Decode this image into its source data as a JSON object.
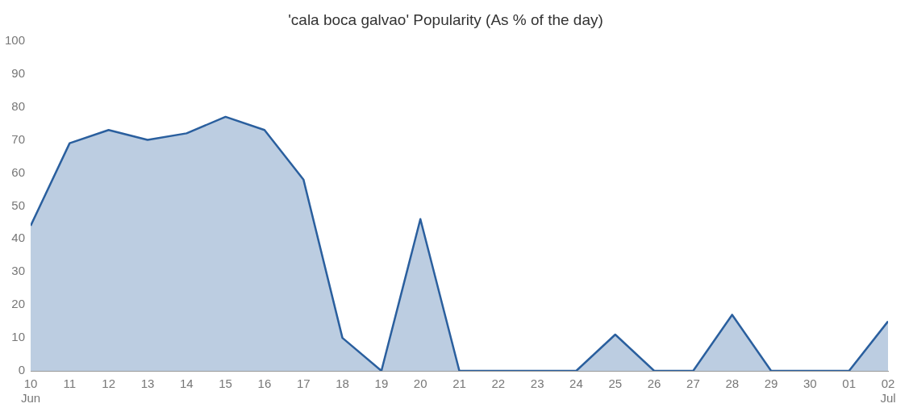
{
  "chart_data": {
    "type": "area",
    "title": "'cala boca galvao' Popularity (As % of the day)",
    "x": [
      "--06-10",
      "--06-11",
      "--06-12",
      "--06-13",
      "--06-14",
      "--06-15",
      "--06-16",
      "--06-17",
      "--06-18",
      "--06-19",
      "--06-20",
      "--06-21",
      "--06-22",
      "--06-23",
      "--06-24",
      "--06-25",
      "--06-26",
      "--06-27",
      "--06-28",
      "--06-29",
      "--06-30",
      "--07-01",
      "--07-02"
    ],
    "series": [
      {
        "color": "#2a5f9e",
        "values": [
          44,
          69,
          73,
          70,
          72,
          77,
          73,
          58,
          10,
          0,
          46,
          0,
          0,
          0,
          0,
          11,
          0,
          0,
          17,
          0,
          0,
          0,
          15
        ]
      }
    ],
    "xlim": [
      "--06-10",
      "--07-02"
    ],
    "xticks": [
      {
        "value": "--06-10",
        "label": "10\nJun"
      },
      {
        "value": "--06-11",
        "label": "11"
      },
      {
        "value": "--06-12",
        "label": "12"
      },
      {
        "value": "--06-13",
        "label": "13"
      },
      {
        "value": "--06-14",
        "label": "14"
      },
      {
        "value": "--06-15",
        "label": "15"
      },
      {
        "value": "--06-16",
        "label": "16"
      },
      {
        "value": "--06-17",
        "label": "17"
      },
      {
        "value": "--06-18",
        "label": "18"
      },
      {
        "value": "--06-19",
        "label": "19"
      },
      {
        "value": "--06-20",
        "label": "20"
      },
      {
        "value": "--06-21",
        "label": "21"
      },
      {
        "value": "--06-22",
        "label": "22"
      },
      {
        "value": "--06-23",
        "label": "23"
      },
      {
        "value": "--06-24",
        "label": "24"
      },
      {
        "value": "--06-25",
        "label": "25"
      },
      {
        "value": "--06-26",
        "label": "26"
      },
      {
        "value": "--06-27",
        "label": "27"
      },
      {
        "value": "--06-28",
        "label": "28"
      },
      {
        "value": "--06-29",
        "label": "29"
      },
      {
        "value": "--06-30",
        "label": "30"
      },
      {
        "value": "--07-01",
        "label": "01"
      },
      {
        "value": "--07-02",
        "label": "02\nJul"
      }
    ],
    "ylim": [
      0,
      100
    ],
    "yticks": [
      0,
      10,
      20,
      30,
      40,
      50,
      60,
      70,
      80,
      90,
      100
    ],
    "grid": false,
    "legend": false,
    "marker": "none"
  }
}
